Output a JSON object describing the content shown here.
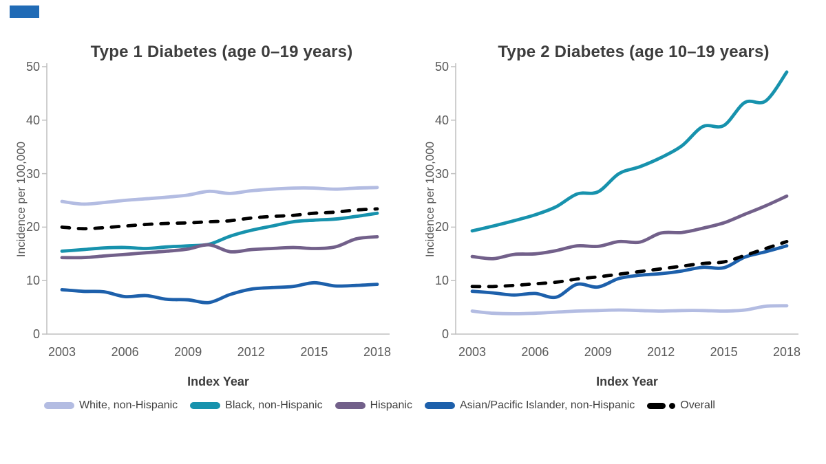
{
  "accent_bar": {
    "color": "#206BB6"
  },
  "legend": {
    "items": [
      {
        "label": "White, non-Hispanic",
        "color": "#B3BCE2",
        "style": "solid"
      },
      {
        "label": "Black, non-Hispanic",
        "color": "#1792AD",
        "style": "solid"
      },
      {
        "label": "Hispanic",
        "color": "#72608A",
        "style": "solid"
      },
      {
        "label": "Asian/Pacific Islander, non-Hispanic",
        "color": "#1D60AB",
        "style": "solid"
      },
      {
        "label": "Overall",
        "color": "#000000",
        "style": "dash-dot"
      }
    ]
  },
  "chart_data": [
    {
      "type": "line",
      "title": "Type 1 Diabetes (age 0–19 years)",
      "xlabel": "Index Year",
      "ylabel": "Incidence per 100,000",
      "x": [
        2003,
        2004,
        2005,
        2006,
        2007,
        2008,
        2009,
        2010,
        2011,
        2012,
        2013,
        2014,
        2015,
        2016,
        2017,
        2018
      ],
      "x_ticks": [
        2003,
        2006,
        2009,
        2012,
        2015,
        2018
      ],
      "ylim": [
        0,
        50
      ],
      "y_ticks": [
        0,
        10,
        20,
        30,
        40,
        50
      ],
      "grid": false,
      "legend_position": "bottom",
      "series": [
        {
          "name": "White, non-Hispanic",
          "color": "#B3BCE2",
          "dashed": false,
          "values": [
            24.8,
            24.3,
            24.6,
            25.0,
            25.3,
            25.6,
            26.0,
            26.7,
            26.3,
            26.8,
            27.1,
            27.3,
            27.3,
            27.1,
            27.3,
            27.4
          ]
        },
        {
          "name": "Black, non-Hispanic",
          "color": "#1792AD",
          "dashed": false,
          "values": [
            15.5,
            15.8,
            16.1,
            16.2,
            16.0,
            16.3,
            16.5,
            16.8,
            18.3,
            19.4,
            20.2,
            21.0,
            21.3,
            21.5,
            22.0,
            22.6
          ]
        },
        {
          "name": "Hispanic",
          "color": "#72608A",
          "dashed": false,
          "values": [
            14.3,
            14.3,
            14.6,
            14.9,
            15.2,
            15.5,
            15.9,
            16.7,
            15.4,
            15.8,
            16.0,
            16.2,
            16.0,
            16.3,
            17.8,
            18.2
          ]
        },
        {
          "name": "Asian/Pacific Islander, non-Hispanic",
          "color": "#1D60AB",
          "dashed": false,
          "values": [
            8.3,
            8.0,
            7.9,
            7.0,
            7.2,
            6.5,
            6.4,
            5.9,
            7.4,
            8.4,
            8.7,
            8.9,
            9.6,
            9.0,
            9.1,
            9.3
          ]
        },
        {
          "name": "Overall",
          "color": "#000000",
          "dashed": true,
          "values": [
            20.0,
            19.7,
            19.9,
            20.2,
            20.5,
            20.7,
            20.8,
            21.0,
            21.2,
            21.7,
            22.0,
            22.2,
            22.6,
            22.8,
            23.2,
            23.4
          ]
        }
      ]
    },
    {
      "type": "line",
      "title": "Type 2 Diabetes (age 10–19 years)",
      "xlabel": "Index Year",
      "ylabel": "Incidence per 100,000",
      "x": [
        2003,
        2004,
        2005,
        2006,
        2007,
        2008,
        2009,
        2010,
        2011,
        2012,
        2013,
        2014,
        2015,
        2016,
        2017,
        2018
      ],
      "x_ticks": [
        2003,
        2006,
        2009,
        2012,
        2015,
        2018
      ],
      "ylim": [
        0,
        50
      ],
      "y_ticks": [
        0,
        10,
        20,
        30,
        40,
        50
      ],
      "grid": false,
      "legend_position": "bottom",
      "series": [
        {
          "name": "White, non-Hispanic",
          "color": "#B3BCE2",
          "dashed": false,
          "values": [
            4.3,
            3.9,
            3.8,
            3.9,
            4.1,
            4.3,
            4.4,
            4.5,
            4.4,
            4.3,
            4.4,
            4.4,
            4.3,
            4.5,
            5.2,
            5.3
          ]
        },
        {
          "name": "Black, non-Hispanic",
          "color": "#1792AD",
          "dashed": false,
          "values": [
            19.3,
            20.2,
            21.2,
            22.3,
            23.8,
            26.2,
            26.6,
            30.0,
            31.3,
            33.0,
            35.2,
            38.8,
            39.0,
            43.3,
            43.6,
            49.0
          ]
        },
        {
          "name": "Hispanic",
          "color": "#72608A",
          "dashed": false,
          "values": [
            14.5,
            14.1,
            14.9,
            15.0,
            15.6,
            16.5,
            16.4,
            17.3,
            17.2,
            18.9,
            19.0,
            19.8,
            20.8,
            22.4,
            24.0,
            25.8
          ]
        },
        {
          "name": "Asian/Pacific Islander, non-Hispanic",
          "color": "#1D60AB",
          "dashed": false,
          "values": [
            8.0,
            7.7,
            7.3,
            7.6,
            6.9,
            9.3,
            8.8,
            10.4,
            11.0,
            11.3,
            11.8,
            12.5,
            12.4,
            14.4,
            15.4,
            16.5
          ]
        },
        {
          "name": "Overall",
          "color": "#000000",
          "dashed": true,
          "values": [
            8.9,
            8.9,
            9.1,
            9.4,
            9.7,
            10.3,
            10.7,
            11.2,
            11.7,
            12.2,
            12.7,
            13.2,
            13.5,
            14.7,
            16.0,
            17.3
          ]
        }
      ]
    }
  ]
}
